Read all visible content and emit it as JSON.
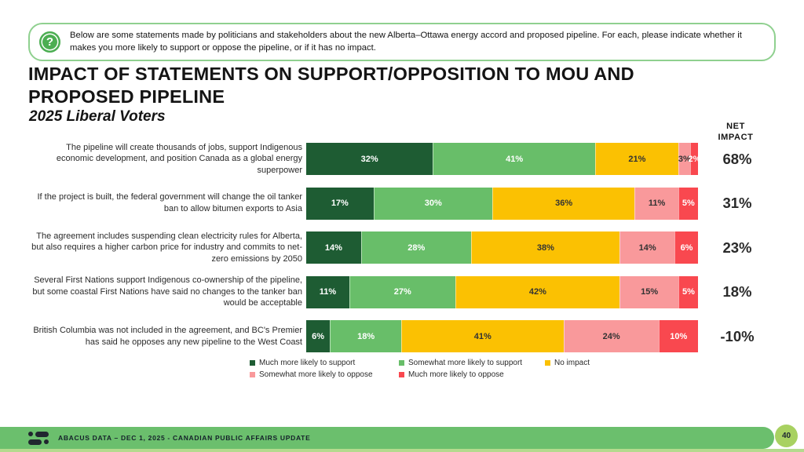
{
  "instruction": {
    "text": "Below are some statements made by politicians and stakeholders about the new Alberta–Ottawa energy accord and proposed pipeline. For each, please indicate whether it makes you more likely to support or oppose the pipeline, or if it has no impact."
  },
  "title": {
    "line1": "IMPACT OF STATEMENTS ON SUPPORT/OPPOSITION TO MOU AND",
    "line2": "PROPOSED PIPELINE"
  },
  "subtitle": "2025 Liberal Voters",
  "net_impact_header": "NET IMPACT",
  "chart_data": {
    "type": "bar",
    "orientation": "horizontal",
    "stacked": true,
    "categories": [
      "The pipeline will create thousands of jobs, support Indigenous economic development, and position Canada as a global energy superpower",
      "If the project is built, the federal government will change the oil tanker ban to allow bitumen exports to Asia",
      "The agreement includes suspending clean electricity rules for Alberta, but also requires a higher carbon price for industry and commits to net-zero emissions by 2050",
      "Several First Nations support Indigenous co-ownership of the pipeline, but some coastal First Nations have said no changes to the tanker ban would be acceptable",
      "British Columbia was not included in the agreement, and BC's Premier has said he opposes any new pipeline to the West Coast"
    ],
    "series": [
      {
        "name": "Much more likely to support",
        "color": "#1e5c33",
        "label_color": "#ffffff",
        "values": [
          32,
          17,
          14,
          11,
          6
        ]
      },
      {
        "name": "Somewhat more likely to support",
        "color": "#68be69",
        "label_color": "#ffffff",
        "values": [
          41,
          30,
          28,
          27,
          18
        ]
      },
      {
        "name": "No impact",
        "color": "#fbc102",
        "label_color": "#333333",
        "values": [
          21,
          36,
          38,
          42,
          41
        ]
      },
      {
        "name": "Somewhat more likely to oppose",
        "color": "#f9999b",
        "label_color": "#333333",
        "values": [
          3,
          11,
          14,
          15,
          24
        ]
      },
      {
        "name": "Much more likely to oppose",
        "color": "#f9484f",
        "label_color": "#ffffff",
        "values": [
          2,
          5,
          6,
          5,
          10
        ]
      }
    ],
    "net_impact": [
      "68%",
      "31%",
      "23%",
      "18%",
      "-10%"
    ],
    "legend_position": "bottom",
    "value_suffix": "%"
  },
  "footer": {
    "text": "ABACUS DATA  – DEC 1, 2025 - CANADIAN PUBLIC AFFAIRS UPDATE",
    "page": "40"
  }
}
